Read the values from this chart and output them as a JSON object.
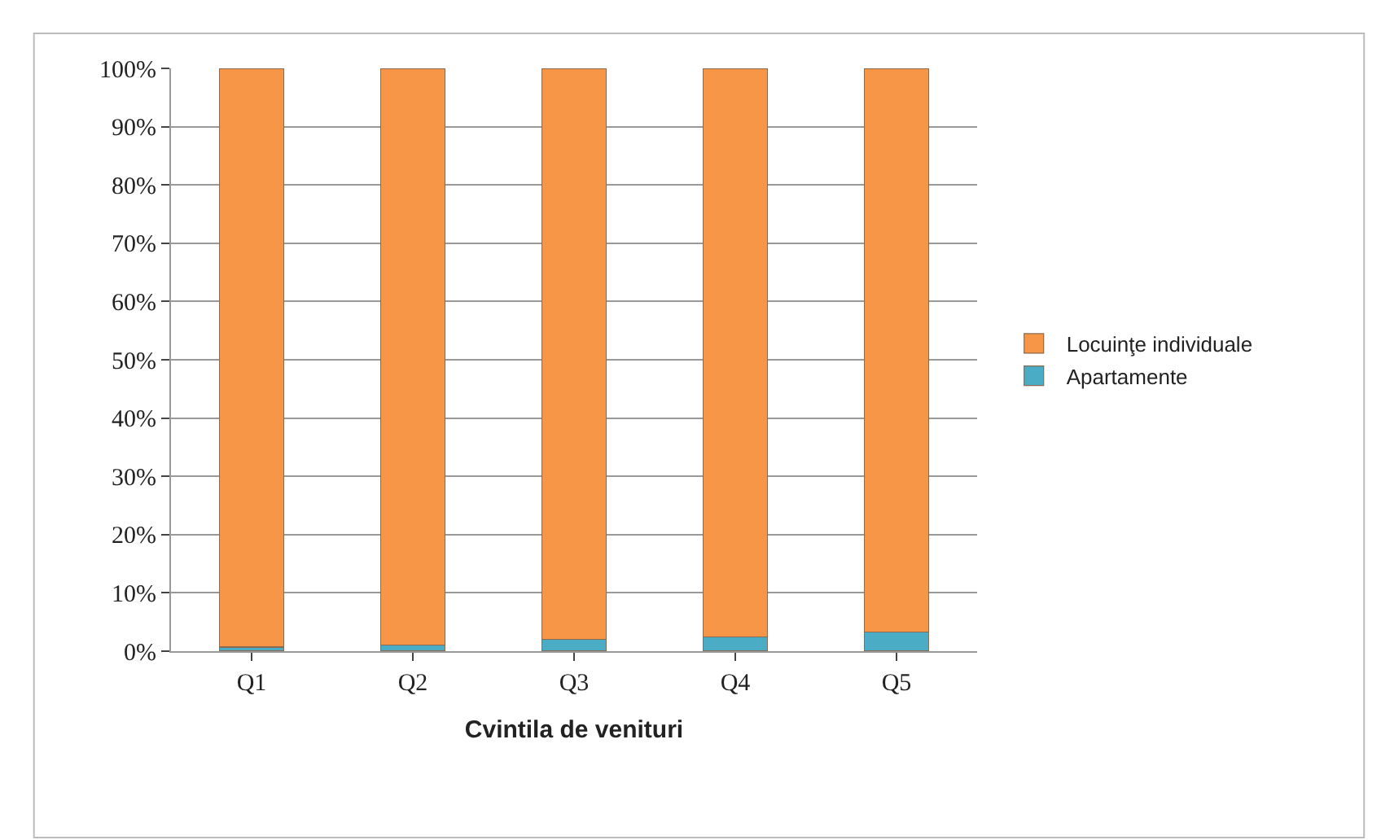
{
  "chart_data": {
    "type": "bar",
    "stacked": true,
    "xlabel": "Cvintila de venituri",
    "categories": [
      "Q1",
      "Q2",
      "Q3",
      "Q4",
      "Q5"
    ],
    "series": [
      {
        "name": "Apartamente",
        "color": "#4bacc6",
        "values": [
          0.7,
          1.0,
          2.0,
          2.5,
          3.3
        ]
      },
      {
        "name": "Locuinţe individuale",
        "color": "#f79646",
        "values": [
          99.3,
          99.0,
          98.0,
          97.5,
          96.7
        ]
      }
    ],
    "ylim": [
      0,
      100
    ],
    "yticks": [
      {
        "value": 0,
        "label": "0%"
      },
      {
        "value": 10,
        "label": "10%"
      },
      {
        "value": 20,
        "label": "20%"
      },
      {
        "value": 30,
        "label": "30%"
      },
      {
        "value": 40,
        "label": "40%"
      },
      {
        "value": 50,
        "label": "50%"
      },
      {
        "value": 60,
        "label": "60%"
      },
      {
        "value": 70,
        "label": "70%"
      },
      {
        "value": 80,
        "label": "80%"
      },
      {
        "value": 90,
        "label": "90%"
      },
      {
        "value": 100,
        "label": "100%"
      }
    ],
    "grid": "y",
    "legend": "right"
  }
}
